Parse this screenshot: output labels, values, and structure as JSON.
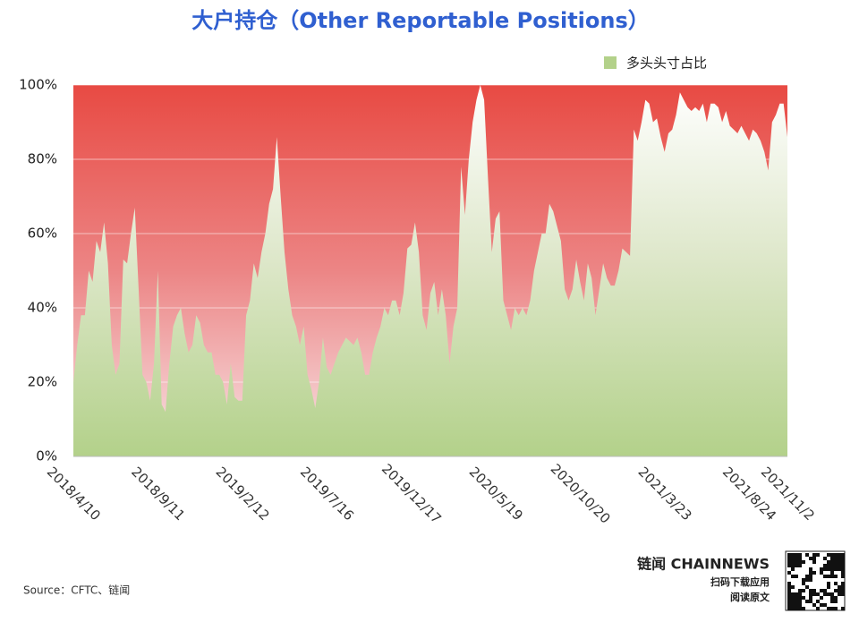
{
  "chart_data": {
    "type": "area",
    "title": "大户持仓（Other Reportable Positions）",
    "categories": [
      "2018/4/10",
      null,
      null,
      null,
      null,
      null,
      null,
      null,
      null,
      null,
      null,
      null,
      null,
      null,
      null,
      null,
      null,
      null,
      null,
      null,
      null,
      null,
      "2018/9/11",
      null,
      null,
      null,
      null,
      null,
      null,
      null,
      null,
      null,
      null,
      null,
      null,
      null,
      null,
      null,
      null,
      null,
      null,
      null,
      null,
      null,
      "2019/2/12",
      null,
      null,
      null,
      null,
      null,
      null,
      null,
      null,
      null,
      null,
      null,
      null,
      null,
      null,
      null,
      null,
      null,
      null,
      null,
      null,
      null,
      "2019/7/16",
      null,
      null,
      null,
      null,
      null,
      null,
      null,
      null,
      null,
      null,
      null,
      null,
      null,
      null,
      null,
      null,
      null,
      null,
      null,
      null,
      null,
      "2019/12/17",
      null,
      null,
      null,
      null,
      null,
      null,
      null,
      null,
      null,
      null,
      null,
      null,
      null,
      null,
      null,
      null,
      null,
      null,
      null,
      null,
      null,
      "2020/5/19",
      null,
      null,
      null,
      null,
      null,
      null,
      null,
      null,
      null,
      null,
      null,
      null,
      null,
      null,
      null,
      null,
      null,
      null,
      null,
      null,
      null,
      "2020/10/20",
      null,
      null,
      null,
      null,
      null,
      null,
      null,
      null,
      null,
      null,
      null,
      null,
      null,
      null,
      null,
      null,
      null,
      null,
      null,
      null,
      null,
      "2021/3/23",
      null,
      null,
      null,
      null,
      null,
      null,
      null,
      null,
      null,
      null,
      null,
      null,
      null,
      null,
      null,
      null,
      null,
      null,
      null,
      null,
      null,
      "2021/8/24",
      null,
      null,
      null,
      null,
      null,
      null,
      null,
      null,
      null,
      "2021/11/2"
    ],
    "series": [
      {
        "name": "多头头寸占比",
        "color": "#b3d18a",
        "values": [
          20,
          30,
          38,
          38,
          50,
          47,
          58,
          55,
          63,
          52,
          30,
          22,
          25,
          53,
          52,
          60,
          67,
          45,
          22,
          20,
          15,
          25,
          50,
          14,
          12,
          25,
          35,
          38,
          40,
          33,
          28,
          30,
          38,
          36,
          30,
          28,
          28,
          22,
          22,
          20,
          14,
          25,
          16,
          15,
          15,
          38,
          42,
          52,
          48,
          55,
          60,
          68,
          72,
          86,
          70,
          55,
          45,
          38,
          35,
          30,
          35,
          22,
          18,
          13,
          20,
          32,
          24,
          22,
          25,
          28,
          30,
          32,
          31,
          30,
          32,
          28,
          22,
          22,
          28,
          32,
          35,
          40,
          38,
          42,
          42,
          38,
          44,
          56,
          57,
          63,
          55,
          38,
          34,
          44,
          47,
          38,
          45,
          38,
          25,
          35,
          40,
          78,
          65,
          80,
          90,
          96,
          100,
          96,
          75,
          55,
          64,
          66,
          42,
          38,
          34,
          40,
          38,
          40,
          38,
          42,
          50,
          55,
          60,
          60,
          68,
          66,
          62,
          58,
          45,
          42,
          45,
          53,
          47,
          42,
          52,
          48,
          38,
          45,
          52,
          48,
          46,
          46,
          50,
          56,
          55,
          54,
          88,
          85,
          90,
          96,
          95,
          90,
          91,
          86,
          82,
          87,
          88,
          92,
          98,
          96,
          94,
          93,
          94,
          93,
          95,
          90,
          95,
          95,
          94,
          90,
          93,
          89,
          88,
          87,
          89,
          87,
          85,
          88,
          87,
          85,
          82,
          77,
          90,
          92,
          95,
          95,
          86
        ]
      }
    ],
    "ylim": [
      0,
      100
    ],
    "yticks": [
      {
        "value": 0,
        "label": "0%"
      },
      {
        "value": 20,
        "label": "20%"
      },
      {
        "value": 40,
        "label": "40%"
      },
      {
        "value": 60,
        "label": "60%"
      },
      {
        "value": 80,
        "label": "80%"
      },
      {
        "value": 100,
        "label": "100%"
      }
    ],
    "grid": true,
    "legend": "top-right",
    "source": "Source：CFTC、链闻",
    "brand": {
      "name": "链闻 CHAINNEWS",
      "line1": "扫码下载应用",
      "line2": "阅读原文"
    }
  }
}
